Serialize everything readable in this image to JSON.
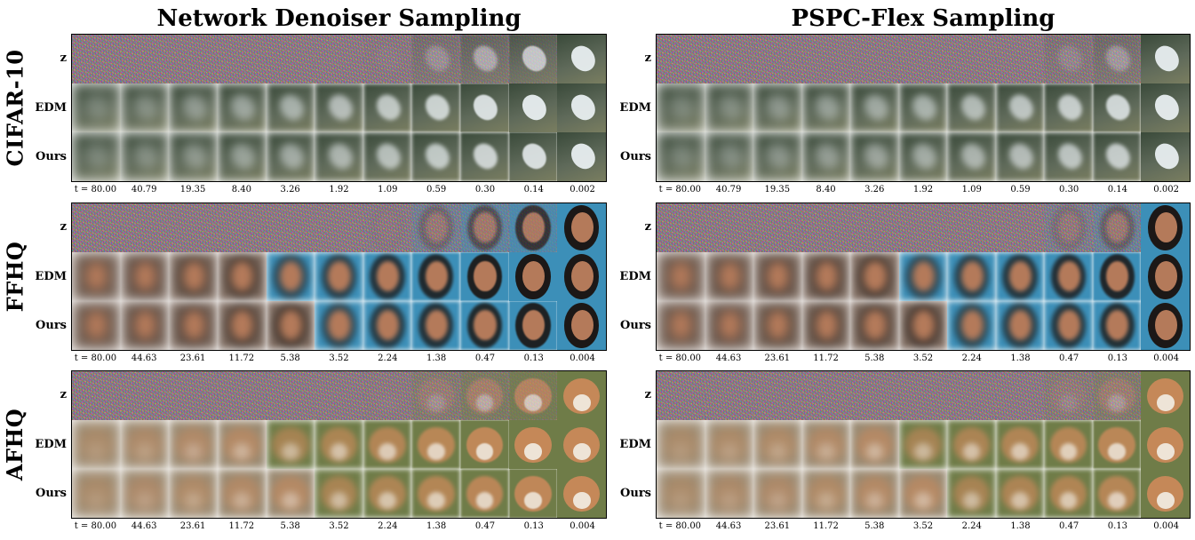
{
  "panels": [
    {
      "id": "left",
      "title": "Network Denoiser Sampling"
    },
    {
      "id": "right",
      "title": "PSPC-Flex Sampling"
    }
  ],
  "row_labels": [
    "z",
    "EDM",
    "Ours"
  ],
  "datasets": [
    {
      "name": "CIFAR-10",
      "subject": "bird",
      "palette": {
        "bg": "#5f6a5a",
        "subject": "#e8eef0",
        "accent": "#3a4a3a"
      },
      "t_values": [
        "t = 80.00",
        "40.79",
        "19.35",
        "8.40",
        "3.26",
        "1.92",
        "1.09",
        "0.59",
        "0.30",
        "0.14",
        "0.002"
      ]
    },
    {
      "name": "FFHQ",
      "subject": "face",
      "palette": {
        "bg": "#3c8fb8",
        "subject": "#b47a5a",
        "accent": "#1a120e"
      },
      "t_values": [
        "t = 80.00",
        "44.63",
        "23.61",
        "11.72",
        "5.38",
        "3.52",
        "2.24",
        "1.38",
        "0.47",
        "0.13",
        "0.004"
      ]
    },
    {
      "name": "AFHQ",
      "subject": "fox",
      "palette": {
        "bg": "#6f7c48",
        "subject": "#c9895a",
        "accent": "#f2eee6"
      },
      "t_values": [
        "t = 80.00",
        "44.63",
        "23.61",
        "11.72",
        "5.38",
        "3.52",
        "2.24",
        "1.38",
        "0.47",
        "0.13",
        "0.004"
      ]
    }
  ]
}
